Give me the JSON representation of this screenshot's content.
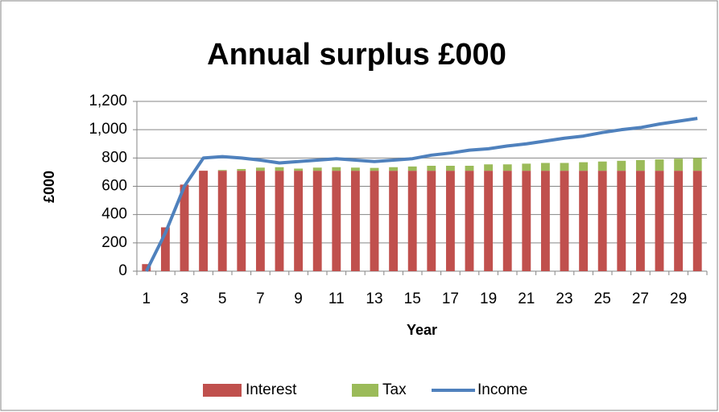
{
  "chart_data": {
    "type": "bar",
    "stacked": true,
    "title": "Annual surplus £000",
    "x_label": "Year",
    "y_label": "£000",
    "categories": [
      "1",
      null,
      "3",
      null,
      "5",
      null,
      "7",
      null,
      "9",
      null,
      "11",
      null,
      "13",
      null,
      "15",
      null,
      "17",
      null,
      "19",
      null,
      "21",
      null,
      "23",
      null,
      "25",
      null,
      "27",
      null,
      "29",
      null
    ],
    "series": [
      {
        "name": "Interest",
        "type": "bar",
        "color": "#c0504d",
        "values": [
          50,
          310,
          612,
          710,
          710,
          710,
          710,
          710,
          710,
          710,
          710,
          710,
          710,
          710,
          710,
          710,
          710,
          710,
          710,
          710,
          710,
          710,
          710,
          710,
          710,
          710,
          710,
          710,
          710,
          710
        ]
      },
      {
        "name": "Tax",
        "type": "bar",
        "color": "#9bbb59",
        "values": [
          0,
          0,
          0,
          0,
          5,
          12,
          22,
          25,
          15,
          22,
          25,
          22,
          20,
          25,
          30,
          35,
          35,
          35,
          45,
          45,
          50,
          55,
          55,
          60,
          65,
          70,
          75,
          80,
          85,
          90
        ]
      },
      {
        "name": "Income",
        "type": "line",
        "color": "#4f81bd",
        "values": [
          0,
          270,
          600,
          800,
          810,
          800,
          785,
          765,
          775,
          785,
          795,
          785,
          775,
          785,
          795,
          820,
          835,
          855,
          865,
          885,
          900,
          920,
          940,
          955,
          980,
          1000,
          1015,
          1040,
          1060,
          1080
        ]
      }
    ],
    "ylim": [
      0,
      1200
    ],
    "yticks": [
      0,
      200,
      400,
      600,
      800,
      {
        "value": 1000,
        "label": "1,000"
      },
      {
        "value": 1200,
        "label": "1,200"
      }
    ],
    "grid": true,
    "legend": "bottom"
  }
}
